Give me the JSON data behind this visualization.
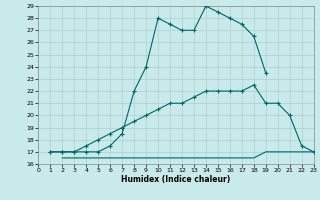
{
  "xlabel": "Humidex (Indice chaleur)",
  "xlim": [
    0,
    23
  ],
  "ylim": [
    16,
    29
  ],
  "xticks": [
    0,
    1,
    2,
    3,
    4,
    5,
    6,
    7,
    8,
    9,
    10,
    11,
    12,
    13,
    14,
    15,
    16,
    17,
    18,
    19,
    20,
    21,
    22,
    23
  ],
  "yticks": [
    16,
    17,
    18,
    19,
    20,
    21,
    22,
    23,
    24,
    25,
    26,
    27,
    28,
    29
  ],
  "bg_color": "#c8eaea",
  "grid_color": "#b0d0d0",
  "line_color": "#006666",
  "line1_x": [
    1,
    2,
    3,
    4,
    5,
    6,
    7,
    8,
    9,
    10,
    11,
    12,
    13,
    14,
    15,
    16,
    17,
    18,
    19
  ],
  "line1_y": [
    17,
    17,
    17,
    17,
    17,
    17.5,
    18.5,
    22,
    24,
    28,
    27.5,
    27,
    27,
    29,
    28.5,
    28,
    27.5,
    26.5,
    23.5
  ],
  "line1_markers_x": [
    1,
    2,
    3,
    4,
    5,
    6,
    7,
    8,
    9,
    10,
    11,
    12,
    13,
    14,
    15,
    16,
    17,
    18,
    19
  ],
  "line1_markers_y": [
    17,
    17,
    17,
    17,
    17,
    17.5,
    18.5,
    22,
    24,
    28,
    27.5,
    27,
    27,
    29,
    28.5,
    28,
    27.5,
    26.5,
    23.5
  ],
  "line2_x": [
    2,
    3,
    4,
    5,
    6,
    7,
    8,
    9,
    10,
    11,
    12,
    13,
    14,
    15,
    16,
    17,
    18,
    19,
    20,
    21,
    22,
    23
  ],
  "line2_y": [
    16.5,
    16.5,
    16.5,
    16.5,
    16.5,
    16.5,
    16.5,
    16.5,
    16.5,
    16.5,
    16.5,
    16.5,
    16.5,
    16.5,
    16.5,
    16.5,
    16.5,
    17,
    17,
    17,
    17,
    17
  ],
  "line3_x": [
    1,
    2,
    3,
    4,
    5,
    6,
    7,
    8,
    9,
    10,
    11,
    12,
    13,
    14,
    15,
    16,
    17,
    18,
    19,
    20,
    21,
    22,
    23
  ],
  "line3_y": [
    17,
    17,
    17,
    17.5,
    18,
    18.5,
    19,
    19.5,
    20,
    20.5,
    21,
    21,
    21.5,
    22,
    22,
    22,
    22,
    22.5,
    21,
    21,
    20,
    17.5,
    17
  ],
  "line3_markers_x": [
    1,
    2,
    3,
    4,
    5,
    6,
    7,
    8,
    9,
    10,
    11,
    12,
    13,
    14,
    15,
    16,
    17,
    18,
    19,
    20,
    21,
    22,
    23
  ],
  "line3_markers_y": [
    17,
    17,
    17,
    17.5,
    18,
    18.5,
    19,
    19.5,
    20,
    20.5,
    21,
    21,
    21.5,
    22,
    22,
    22,
    22,
    22.5,
    21,
    21,
    20,
    17.5,
    17
  ]
}
